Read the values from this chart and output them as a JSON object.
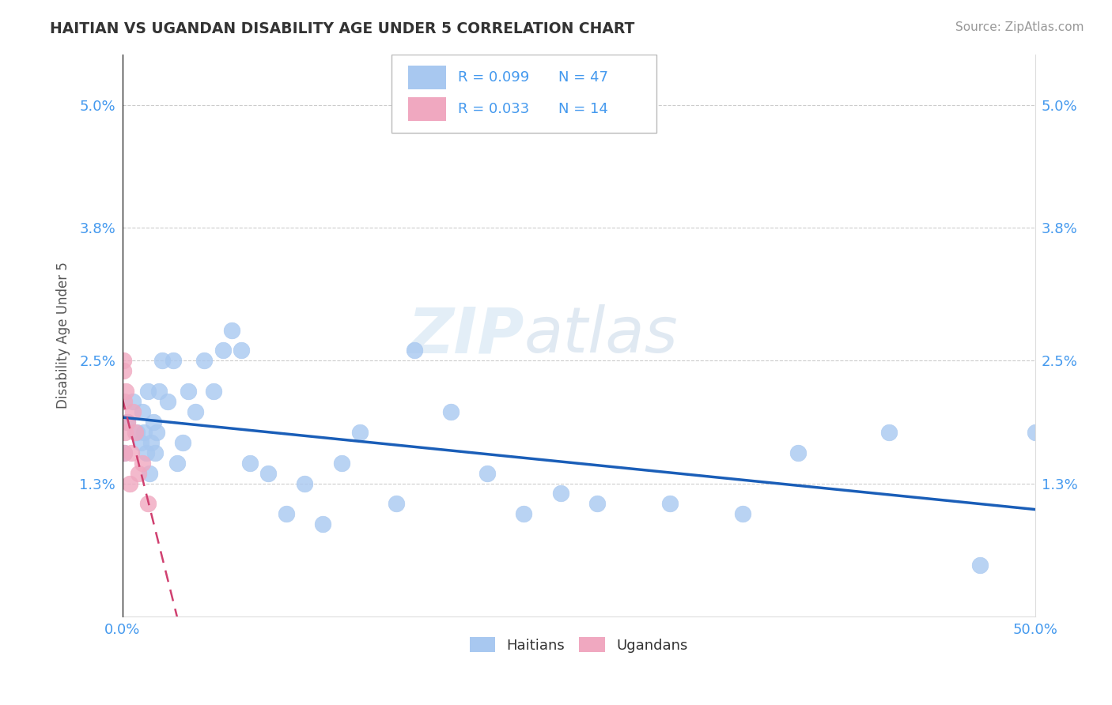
{
  "title": "HAITIAN VS UGANDAN DISABILITY AGE UNDER 5 CORRELATION CHART",
  "source": "Source: ZipAtlas.com",
  "ylabel": "Disability Age Under 5",
  "xlim": [
    0.0,
    0.5
  ],
  "ylim": [
    0.0,
    0.055
  ],
  "yticks": [
    0.013,
    0.025,
    0.038,
    0.05
  ],
  "ytick_labels": [
    "1.3%",
    "2.5%",
    "3.8%",
    "5.0%"
  ],
  "xticks": [
    0.0,
    0.5
  ],
  "xtick_labels": [
    "0.0%",
    "50.0%"
  ],
  "haitians_x": [
    0.001,
    0.003,
    0.006,
    0.008,
    0.01,
    0.011,
    0.012,
    0.013,
    0.014,
    0.015,
    0.016,
    0.017,
    0.018,
    0.019,
    0.02,
    0.022,
    0.025,
    0.028,
    0.03,
    0.033,
    0.036,
    0.04,
    0.045,
    0.05,
    0.055,
    0.06,
    0.065,
    0.07,
    0.08,
    0.09,
    0.1,
    0.11,
    0.12,
    0.13,
    0.15,
    0.16,
    0.18,
    0.2,
    0.22,
    0.24,
    0.26,
    0.3,
    0.34,
    0.37,
    0.42,
    0.47,
    0.5
  ],
  "haitians_y": [
    0.016,
    0.019,
    0.021,
    0.018,
    0.017,
    0.02,
    0.018,
    0.016,
    0.022,
    0.014,
    0.017,
    0.019,
    0.016,
    0.018,
    0.022,
    0.025,
    0.021,
    0.025,
    0.015,
    0.017,
    0.022,
    0.02,
    0.025,
    0.022,
    0.026,
    0.028,
    0.026,
    0.015,
    0.014,
    0.01,
    0.013,
    0.009,
    0.015,
    0.018,
    0.011,
    0.026,
    0.02,
    0.014,
    0.01,
    0.012,
    0.011,
    0.011,
    0.01,
    0.016,
    0.018,
    0.005,
    0.018
  ],
  "ugandans_x": [
    0.0005,
    0.0008,
    0.001,
    0.0012,
    0.0015,
    0.002,
    0.003,
    0.004,
    0.005,
    0.006,
    0.007,
    0.009,
    0.011,
    0.014
  ],
  "ugandans_y": [
    0.025,
    0.024,
    0.021,
    0.016,
    0.018,
    0.022,
    0.019,
    0.013,
    0.016,
    0.02,
    0.018,
    0.014,
    0.015,
    0.011
  ],
  "haitian_R": 0.099,
  "haitian_N": 47,
  "ugandan_R": 0.033,
  "ugandan_N": 14,
  "haitian_color": "#a8c8f0",
  "ugandan_color": "#f0a8c0",
  "haitian_line_color": "#1a5eb8",
  "ugandan_line_color": "#d04070",
  "grid_color": "#cccccc",
  "watermark_zip": "ZIP",
  "watermark_atlas": "atlas",
  "background_color": "#ffffff"
}
